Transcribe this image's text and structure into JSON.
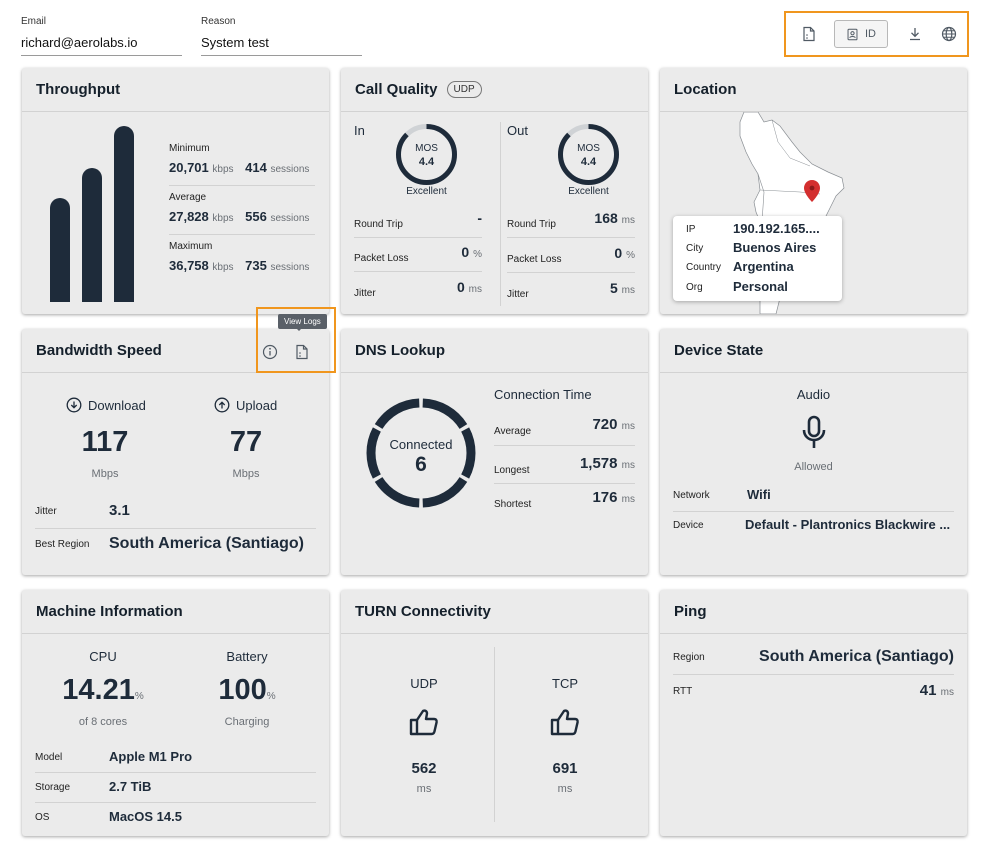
{
  "header": {
    "email": {
      "label": "Email",
      "value": "richard@aerolabs.io"
    },
    "reason": {
      "label": "Reason",
      "value": "System test"
    },
    "toolbar": {
      "id_label": "ID",
      "icons": [
        "logs-icon",
        "id-badge-icon",
        "download-icon",
        "globe-icon"
      ]
    }
  },
  "throughput": {
    "title": "Throughput",
    "bars": [
      0.59,
      0.76,
      1.0
    ],
    "stats": [
      {
        "label": "Minimum",
        "value": "20,701",
        "unit": "kbps",
        "sessions": "414",
        "sessions_unit": "sessions"
      },
      {
        "label": "Average",
        "value": "27,828",
        "unit": "kbps",
        "sessions": "556",
        "sessions_unit": "sessions"
      },
      {
        "label": "Maximum",
        "value": "36,758",
        "unit": "kbps",
        "sessions": "735",
        "sessions_unit": "sessions"
      }
    ]
  },
  "call_quality": {
    "title": "Call Quality",
    "badge": "UDP",
    "in": {
      "label": "In",
      "mos_label": "MOS",
      "mos": "4.4",
      "rating": "Excellent",
      "rows": [
        {
          "label": "Round Trip",
          "value": "-",
          "unit": ""
        },
        {
          "label": "Packet Loss",
          "value": "0",
          "unit": "%"
        },
        {
          "label": "Jitter",
          "value": "0",
          "unit": "ms"
        }
      ]
    },
    "out": {
      "label": "Out",
      "mos_label": "MOS",
      "mos": "4.4",
      "rating": "Excellent",
      "rows": [
        {
          "label": "Round Trip",
          "value": "168",
          "unit": "ms"
        },
        {
          "label": "Packet Loss",
          "value": "0",
          "unit": "%"
        },
        {
          "label": "Jitter",
          "value": "5",
          "unit": "ms"
        }
      ]
    }
  },
  "location": {
    "title": "Location",
    "rows": [
      {
        "label": "IP",
        "value": "190.192.165...."
      },
      {
        "label": "City",
        "value": "Buenos Aires"
      },
      {
        "label": "Country",
        "value": "Argentina"
      },
      {
        "label": "Org",
        "value": "Personal"
      }
    ]
  },
  "bandwidth": {
    "title": "Bandwidth Speed",
    "tooltip": "View Logs",
    "download": {
      "label": "Download",
      "value": "117",
      "unit": "Mbps"
    },
    "upload": {
      "label": "Upload",
      "value": "77",
      "unit": "Mbps"
    },
    "jitter": {
      "label": "Jitter",
      "value": "3.1"
    },
    "region": {
      "label": "Best Region",
      "value": "South America (Santiago)"
    }
  },
  "dns": {
    "title": "DNS Lookup",
    "ring_label": "Connected",
    "ring_value": "6",
    "ring_segments": 6,
    "connection_title": "Connection Time",
    "rows": [
      {
        "label": "Average",
        "value": "720",
        "unit": "ms"
      },
      {
        "label": "Longest",
        "value": "1,578",
        "unit": "ms"
      },
      {
        "label": "Shortest",
        "value": "176",
        "unit": "ms"
      }
    ]
  },
  "device": {
    "title": "Device State",
    "audio_label": "Audio",
    "audio_status": "Allowed",
    "rows": [
      {
        "label": "Network",
        "value": "Wifi"
      },
      {
        "label": "Device",
        "value": "Default - Plantronics Blackwire ..."
      }
    ]
  },
  "machine": {
    "title": "Machine Information",
    "cpu": {
      "label": "CPU",
      "value": "14.21",
      "unit": "%",
      "sub": "of 8 cores"
    },
    "battery": {
      "label": "Battery",
      "value": "100",
      "unit": "%",
      "sub": "Charging"
    },
    "rows": [
      {
        "label": "Model",
        "value": "Apple M1 Pro"
      },
      {
        "label": "Storage",
        "value": "2.7 TiB"
      },
      {
        "label": "OS",
        "value": "MacOS 14.5"
      }
    ]
  },
  "turn": {
    "title": "TURN Connectivity",
    "udp": {
      "label": "UDP",
      "value": "562",
      "unit": "ms"
    },
    "tcp": {
      "label": "TCP",
      "value": "691",
      "unit": "ms"
    }
  },
  "ping": {
    "title": "Ping",
    "region": {
      "label": "Region",
      "value": "South America (Santiago)"
    },
    "rtt": {
      "label": "RTT",
      "value": "41",
      "unit": "ms"
    }
  },
  "colors": {
    "accent": "#f0961e",
    "dark": "#1e2b3a",
    "card": "#ebebeb",
    "pin": "#d32f2f"
  }
}
